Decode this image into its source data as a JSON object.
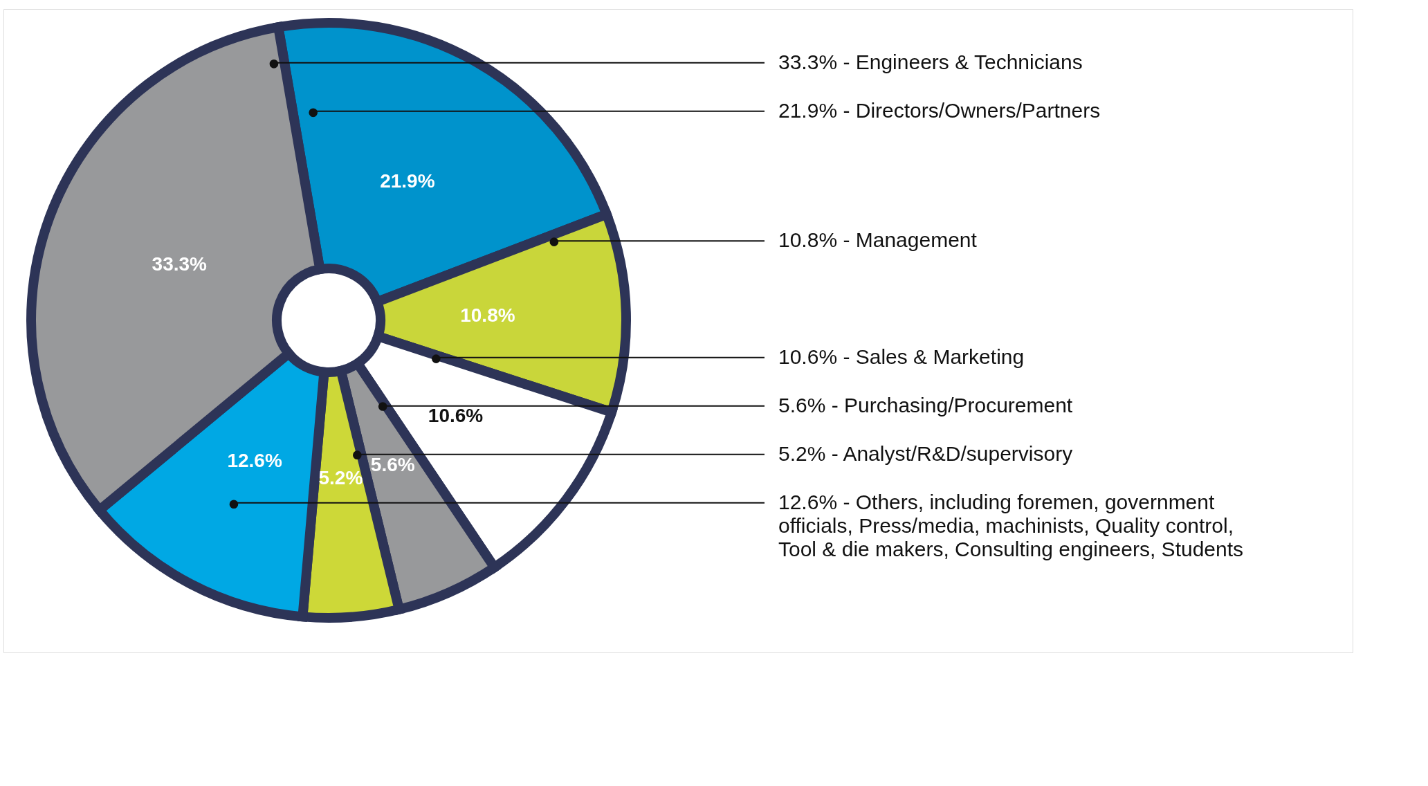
{
  "chart_data": {
    "type": "donut",
    "categories": [
      "21.9% - Directors/Owners/Partners",
      "10.8% - Management",
      "10.6% - Sales & Marketing",
      "5.6% - Purchasing/Procurement",
      "5.2% - Analyst/R&D/supervisory",
      "12.6% - Others, including foremen, government officials, Press/media, machinists, Quality control, Tool & die makers, Consulting engineers, Students",
      "33.3% - Engineers & Technicians"
    ],
    "values": [
      21.9,
      10.8,
      10.6,
      5.6,
      5.2,
      12.6,
      33.3
    ],
    "value_labels": [
      "21.9%",
      "10.8%",
      "10.6%",
      "5.6%",
      "5.2%",
      "12.6%",
      "33.3%"
    ],
    "colors": [
      "#0093cc",
      "#c9d63a",
      "#ffffff",
      "#98999b",
      "#cdd838",
      "#00a8e4",
      "#98999b"
    ]
  }
}
